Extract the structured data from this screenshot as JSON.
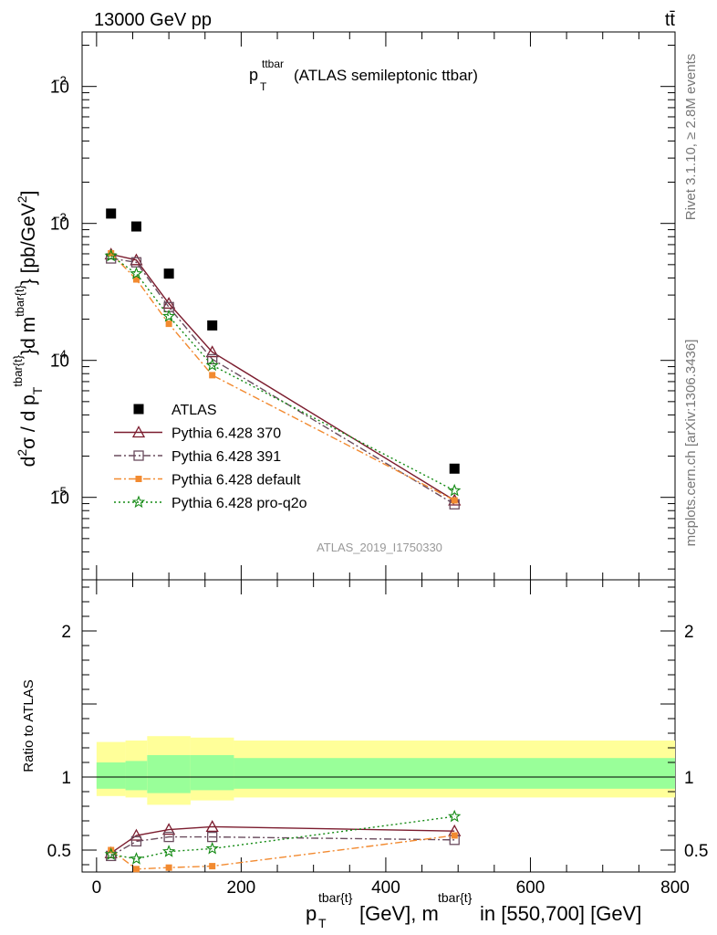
{
  "header": {
    "energy_label": "13000 GeV pp",
    "process_label": "tt̄",
    "rivet_label": "Rivet 3.1.10, ≥ 2.8M events",
    "mcplots_label": "mcplots.cern.ch [arXiv:1306.3436]",
    "analysis_id": "ATLAS_2019_I1750330"
  },
  "chart_data": [
    {
      "type": "scatter",
      "panel": "main",
      "title_main": "p",
      "title_sub": "T",
      "title_sup": "ttbar",
      "title_rest": " (ATLAS semileptonic ttbar)",
      "ylabel": "d²σ / d p_T^{tbar{t}}d m^{tbar{t}} [pb/GeV²]",
      "yscale": "log",
      "ylim": [
        2.5e-06,
        0.025
      ],
      "xlim": [
        -20,
        800
      ],
      "y_tick_labels": [
        "10^-5",
        "10^-4",
        "10^-3",
        "10^-2"
      ],
      "legend_position": "lower-left",
      "x": [
        20,
        55,
        100,
        160,
        495
      ],
      "series": [
        {
          "name": "ATLAS",
          "color": "#000000",
          "marker": "filled-square",
          "line": "none",
          "values": [
            0.00118,
            0.00095,
            0.00043,
            0.00018,
            1.62e-05
          ]
        },
        {
          "name": "Pythia 6.428 370",
          "color": "#7b1c2e",
          "marker": "open-triangle",
          "line": "solid",
          "values": [
            0.000595,
            0.00054,
            0.00026,
            0.000115,
            9.5e-06
          ]
        },
        {
          "name": "Pythia 6.428 391",
          "color": "#6a4c5e",
          "marker": "open-square",
          "line": "dashdot",
          "values": [
            0.000555,
            0.00052,
            0.000245,
            0.000102,
            8.9e-06
          ]
        },
        {
          "name": "Pythia 6.428 default",
          "color": "#f28a30",
          "marker": "filled-square",
          "line": "dashdot",
          "values": [
            0.000605,
            0.00039,
            0.000185,
            7.8e-05,
            9.5e-06
          ]
        },
        {
          "name": "Pythia 6.428 pro-q2o",
          "color": "#138a13",
          "marker": "star",
          "line": "dotted",
          "values": [
            0.00058,
            0.00043,
            0.00021,
            9.2e-05,
            1.12e-05
          ]
        }
      ]
    },
    {
      "type": "line",
      "panel": "ratio",
      "ylabel": "Ratio to ATLAS",
      "xlabel_main": "p",
      "xlabel_sub": "T",
      "xlabel_sup1": "tbar{t}",
      "xlabel_mid": "[GeV], m",
      "xlabel_sup2": "tbar{t}",
      "xlabel_rest": " in [550,700] [GeV]",
      "ylim": [
        0.35,
        2.35
      ],
      "xlim": [
        -20,
        800
      ],
      "y_tick_labels": [
        "0.5",
        "1",
        "2"
      ],
      "x_tick_labels": [
        "0",
        "200",
        "400",
        "600",
        "800"
      ],
      "bands": {
        "bins": [
          [
            0,
            40
          ],
          [
            40,
            70
          ],
          [
            70,
            130
          ],
          [
            130,
            190
          ],
          [
            190,
            800
          ]
        ],
        "yellow": [
          [
            0.87,
            1.24
          ],
          [
            0.86,
            1.25
          ],
          [
            0.81,
            1.28
          ],
          [
            0.84,
            1.27
          ],
          [
            0.86,
            1.25
          ]
        ],
        "green": [
          [
            0.92,
            1.1
          ],
          [
            0.91,
            1.11
          ],
          [
            0.89,
            1.15
          ],
          [
            0.91,
            1.15
          ],
          [
            0.92,
            1.13
          ]
        ],
        "yellow_color": "#ffff99",
        "green_color": "#99ff99"
      },
      "x": [
        20,
        55,
        100,
        160,
        495
      ],
      "series": [
        {
          "name": "Pythia 6.428 370",
          "color": "#7b1c2e",
          "marker": "open-triangle",
          "line": "solid",
          "values": [
            0.48,
            0.6,
            0.64,
            0.66,
            0.63
          ]
        },
        {
          "name": "Pythia 6.428 391",
          "color": "#6a4c5e",
          "marker": "open-square",
          "line": "dashdot",
          "values": [
            0.46,
            0.56,
            0.59,
            0.59,
            0.57
          ]
        },
        {
          "name": "Pythia 6.428 default",
          "color": "#f28a30",
          "marker": "filled-square",
          "line": "dashdot",
          "values": [
            0.5,
            0.37,
            0.38,
            0.39,
            0.6
          ]
        },
        {
          "name": "Pythia 6.428 pro-q2o",
          "color": "#138a13",
          "marker": "star",
          "line": "dotted",
          "values": [
            0.47,
            0.44,
            0.49,
            0.51,
            0.73
          ]
        }
      ]
    }
  ]
}
